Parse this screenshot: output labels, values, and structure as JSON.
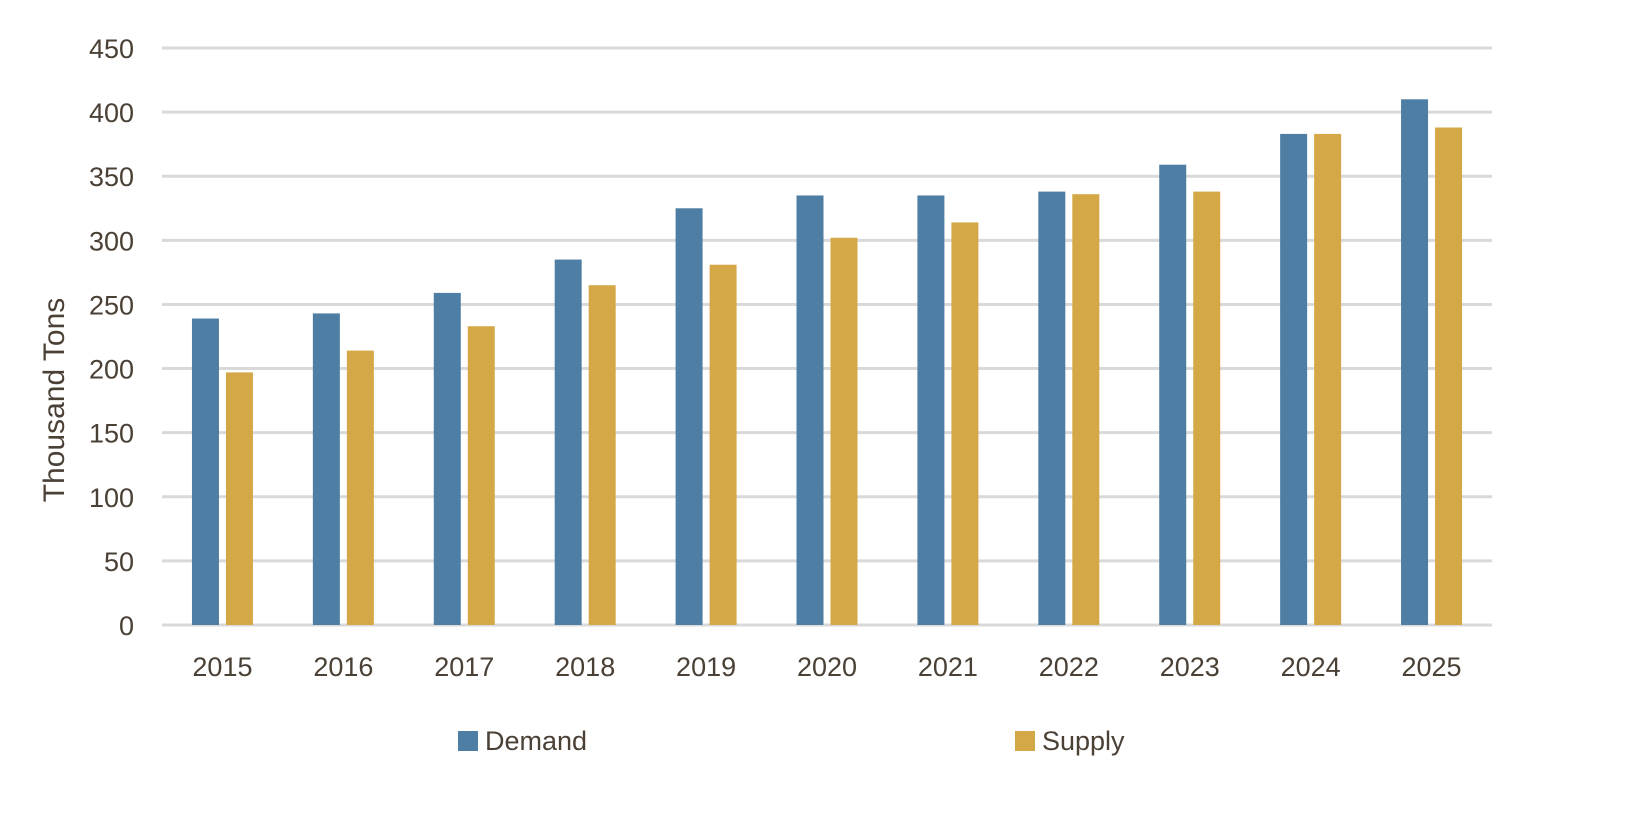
{
  "chart_data": {
    "type": "bar",
    "title": "",
    "xlabel": "",
    "ylabel": "Thousand Tons",
    "ylim": [
      0,
      450
    ],
    "yticks": [
      0,
      50,
      100,
      150,
      200,
      250,
      300,
      350,
      400,
      450
    ],
    "grid": true,
    "legend_position": "bottom",
    "categories": [
      "2015",
      "2016",
      "2017",
      "2018",
      "2019",
      "2020",
      "2021",
      "2022",
      "2023",
      "2024",
      "2025"
    ],
    "series": [
      {
        "name": "Demand",
        "color": "#4e7ea3",
        "values": [
          239,
          243,
          259,
          285,
          325,
          335,
          335,
          338,
          359,
          383,
          410
        ]
      },
      {
        "name": "Supply",
        "color": "#d4a846",
        "values": [
          197,
          214,
          233,
          265,
          281,
          302,
          314,
          336,
          338,
          383,
          388
        ]
      }
    ]
  }
}
